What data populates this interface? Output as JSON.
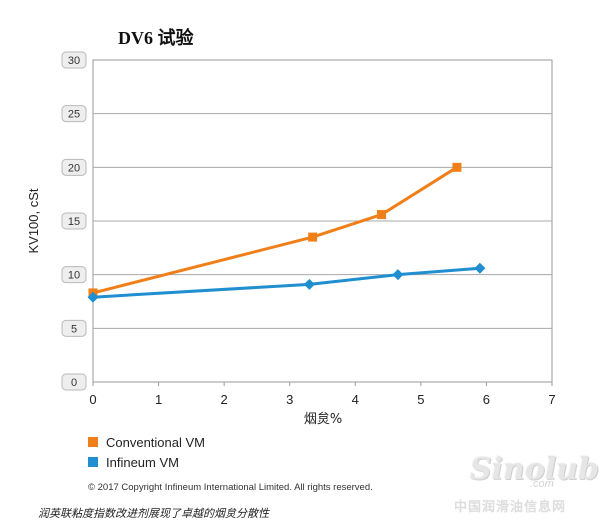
{
  "chart_data": {
    "type": "line",
    "title": "DV6  试验",
    "xlabel": "烟炱%",
    "ylabel": "KV100, cSt",
    "xlim": [
      0,
      7
    ],
    "ylim": [
      0,
      30
    ],
    "x_ticks": [
      0,
      1,
      2,
      3,
      4,
      5,
      6,
      7
    ],
    "y_ticks": [
      0,
      5,
      10,
      15,
      20,
      25,
      30
    ],
    "grid": "horizontal",
    "legend_position": "bottom-left",
    "series": [
      {
        "name": "Conventional VM",
        "color": "#f07f1a",
        "marker": "square",
        "points": [
          {
            "x": 0.0,
            "y": 8.3
          },
          {
            "x": 3.35,
            "y": 13.5
          },
          {
            "x": 4.4,
            "y": 15.6
          },
          {
            "x": 5.55,
            "y": 20.0
          }
        ]
      },
      {
        "name": "Infineum VM",
        "color": "#1f8fd0",
        "marker": "diamond",
        "points": [
          {
            "x": 0.0,
            "y": 7.9
          },
          {
            "x": 3.3,
            "y": 9.1
          },
          {
            "x": 4.65,
            "y": 10.0
          },
          {
            "x": 5.9,
            "y": 10.6
          }
        ]
      }
    ]
  },
  "copyright": "© 2017 Copyright Infineum International Limited. All rights reserved.",
  "caption": "润英联粘度指数改进剂展现了卓越的烟炱分散性",
  "watermark": {
    "brand": "Sinolub",
    "domain": ".com",
    "site": "中国润滑油信息网"
  }
}
